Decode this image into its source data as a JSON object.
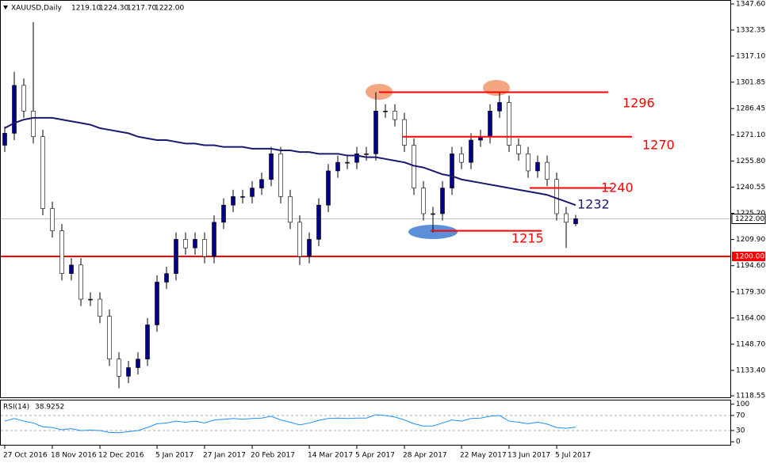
{
  "chart_data": {
    "type": "candlestick",
    "symbol": "XAUUSD,Daily",
    "ohlc_labels": [
      "1219.10",
      "1224.30",
      "1217.70",
      "1222.00"
    ],
    "categories": [
      "27 Oct 2016",
      null,
      null,
      null,
      null,
      "18 Nov 2016",
      null,
      null,
      null,
      null,
      "12 Dec 2016",
      null,
      null,
      null,
      null,
      null,
      "5 Jan 2017",
      null,
      null,
      null,
      null,
      "27 Jan 2017",
      null,
      null,
      null,
      null,
      "20 Feb 2017",
      null,
      null,
      null,
      null,
      null,
      "14 Mar 2017",
      null,
      null,
      null,
      null,
      "5 Apr 2017",
      null,
      null,
      null,
      null,
      "28 Apr 2017",
      null,
      null,
      null,
      null,
      null,
      "22 May 2017",
      null,
      null,
      null,
      null,
      "13 Jun 2017",
      null,
      null,
      null,
      null,
      "5 Jul 2017",
      null,
      null
    ],
    "open": [
      1265,
      1272,
      1300,
      1285,
      1270,
      1228,
      1215,
      1190,
      1195,
      1175,
      1175,
      1165,
      1140,
      1130,
      1135,
      1140,
      1160,
      1185,
      1190,
      1210,
      1205,
      1210,
      1200,
      1220,
      1230,
      1235,
      1235,
      1240,
      1245,
      1260,
      1235,
      1220,
      1200,
      1210,
      1230,
      1250,
      1255,
      1255,
      1260,
      1260,
      1285,
      1285,
      1280,
      1265,
      1240,
      1225,
      1225,
      1240,
      1260,
      1255,
      1268,
      1270,
      1285,
      1290,
      1265,
      1260,
      1250,
      1255,
      1245,
      1225,
      1219.1
    ],
    "high": [
      1276,
      1308,
      1304,
      1337,
      1274,
      1232,
      1219,
      1199,
      1199,
      1179,
      1179,
      1169,
      1144,
      1139,
      1144,
      1164,
      1189,
      1194,
      1214,
      1214,
      1214,
      1214,
      1224,
      1234,
      1239,
      1239,
      1244,
      1249,
      1264,
      1264,
      1239,
      1224,
      1214,
      1234,
      1254,
      1259,
      1259,
      1264,
      1264,
      1296,
      1289,
      1289,
      1284,
      1269,
      1244,
      1229,
      1244,
      1264,
      1264,
      1272,
      1274,
      1289,
      1296,
      1294,
      1269,
      1264,
      1259,
      1259,
      1249,
      1229,
      1224.3
    ],
    "low": [
      1261,
      1268,
      1281,
      1266,
      1224,
      1211,
      1186,
      1186,
      1171,
      1171,
      1161,
      1136,
      1123,
      1126,
      1131,
      1136,
      1156,
      1181,
      1186,
      1201,
      1201,
      1196,
      1196,
      1216,
      1226,
      1231,
      1231,
      1236,
      1241,
      1231,
      1216,
      1195,
      1196,
      1206,
      1226,
      1246,
      1251,
      1251,
      1256,
      1256,
      1281,
      1276,
      1261,
      1236,
      1221,
      1214,
      1221,
      1236,
      1251,
      1251,
      1264,
      1266,
      1281,
      1261,
      1256,
      1246,
      1246,
      1241,
      1221,
      1205,
      1217.7
    ],
    "close": [
      1272,
      1300,
      1285,
      1270,
      1228,
      1215,
      1190,
      1195,
      1175,
      1175,
      1165,
      1140,
      1130,
      1135,
      1140,
      1160,
      1185,
      1190,
      1210,
      1205,
      1210,
      1200,
      1220,
      1230,
      1235,
      1235,
      1240,
      1245,
      1260,
      1235,
      1220,
      1200,
      1210,
      1230,
      1250,
      1255,
      1255,
      1260,
      1260,
      1285,
      1285,
      1280,
      1265,
      1240,
      1225,
      1225,
      1240,
      1260,
      1255,
      1268,
      1270,
      1285,
      1290,
      1265,
      1260,
      1250,
      1255,
      1245,
      1225,
      1220,
      1222
    ],
    "up_color": "#00008b",
    "down_color": "#ffffff",
    "ma": {
      "color": "#191970",
      "values": [
        1275,
        1278,
        1280,
        1281,
        1281,
        1281,
        1280,
        1279,
        1278,
        1277,
        1275,
        1274,
        1273,
        1272,
        1270,
        1269,
        1268,
        1268,
        1267,
        1266,
        1266,
        1265,
        1265,
        1264,
        1264,
        1264,
        1263,
        1263,
        1263,
        1262,
        1262,
        1261,
        1261,
        1260,
        1260,
        1260,
        1259,
        1259,
        1258,
        1258,
        1257,
        1256,
        1255,
        1253,
        1252,
        1250,
        1248,
        1247,
        1245,
        1244,
        1243,
        1242,
        1241,
        1240,
        1239,
        1238,
        1237,
        1236,
        1234,
        1232,
        1230
      ]
    },
    "ylim": [
      1117.2,
      1349.9
    ],
    "yticks": [
      {
        "value": 1347.6,
        "label": "1347.60"
      },
      {
        "value": 1332.35,
        "label": "1332.35"
      },
      {
        "value": 1317.1,
        "label": "1317.10"
      },
      {
        "value": 1301.85,
        "label": "1301.85"
      },
      {
        "value": 1286.45,
        "label": "1286.45"
      },
      {
        "value": 1271.1,
        "label": "1271.10"
      },
      {
        "value": 1255.8,
        "label": "1255.80"
      },
      {
        "value": 1240.55,
        "label": "1240.55"
      },
      {
        "value": 1225.2,
        "label": "1225.20"
      },
      {
        "value": 1209.9,
        "label": "1209.90"
      },
      {
        "value": 1194.6,
        "label": "1194.60"
      },
      {
        "value": 1179.3,
        "label": "1179.30"
      },
      {
        "value": 1164,
        "label": "1164.00"
      },
      {
        "value": 1148.7,
        "label": "1148.70"
      },
      {
        "value": 1133.4,
        "label": "1133.40"
      },
      {
        "value": 1118.55,
        "label": "1118.55"
      }
    ],
    "support_line": {
      "value": 1200,
      "label": "1200.00",
      "color": "#ff0000"
    },
    "current_price": {
      "value": 1222,
      "label": "1222.00"
    },
    "levels": [
      {
        "value": 1296,
        "color": "#ff0000"
      },
      {
        "value": 1270,
        "color": "#ff0000"
      },
      {
        "value": 1240,
        "color": "#ff0000"
      },
      {
        "value": 1215,
        "color": "#ff0000"
      },
      {
        "value": 1232,
        "color": "#191970"
      }
    ],
    "rsi": {
      "name": "RSI(14)",
      "color": "#1e90ff",
      "ylim": [
        -8,
        112
      ],
      "yticks": [
        100,
        70,
        30,
        0
      ],
      "values": [
        55,
        62,
        55,
        50,
        40,
        38,
        32,
        35,
        30,
        31,
        30,
        25,
        24,
        27,
        30,
        38,
        48,
        50,
        55,
        52,
        55,
        50,
        58,
        60,
        62,
        60,
        62,
        63,
        68,
        58,
        52,
        45,
        50,
        57,
        62,
        63,
        62,
        63,
        63,
        72,
        70,
        66,
        58,
        48,
        42,
        42,
        50,
        58,
        55,
        62,
        63,
        68,
        70,
        55,
        52,
        48,
        52,
        47,
        38,
        36,
        38.9252
      ]
    }
  }
}
